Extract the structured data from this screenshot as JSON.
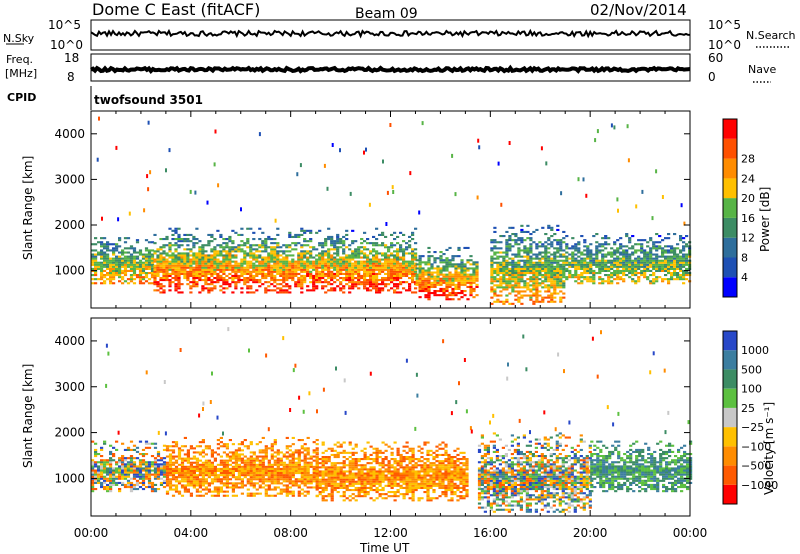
{
  "header": {
    "station": "Dome C East (fitACF)",
    "beam": "Beam 09",
    "date": "02/Nov/2014"
  },
  "strips": {
    "nsky": {
      "label": "N.Sky",
      "ticks": [
        "10^5",
        "10^0"
      ]
    },
    "nsearch": {
      "label": "N.Search",
      "ticks": [
        "10^5",
        "10^0"
      ]
    },
    "freq": {
      "label_top": "Freq.",
      "label_bottom": "[MHz]",
      "ticks": [
        "18",
        "8"
      ]
    },
    "nave": {
      "label": "Nave",
      "ticks": [
        "60",
        "0"
      ]
    },
    "cpid": {
      "label": "CPID",
      "value": "twofsound 3501"
    }
  },
  "colors": {
    "power": [
      "#0000ff",
      "#1e50b4",
      "#2e6e9c",
      "#3c8c64",
      "#57b446",
      "#ffc000",
      "#ff8c00",
      "#ff5000",
      "#ff0000"
    ],
    "velocity": [
      "#2848c8",
      "#3c7ea0",
      "#3c8c64",
      "#5cc040",
      "#c8c8c8",
      "#ffc000",
      "#ff8c00",
      "#ff5a00",
      "#ff0000"
    ]
  },
  "chart_data": [
    {
      "type": "heatmap",
      "title": "Power",
      "xlabel": "",
      "ylabel": "Slant Range [km]",
      "xlim": [
        0,
        24
      ],
      "ylim": [
        180,
        4500
      ],
      "yticks": [
        "1000",
        "2000",
        "3000",
        "4000"
      ],
      "colorbar": {
        "label": "Power [dB]",
        "ticks": [
          "4",
          "8",
          "12",
          "16",
          "20",
          "24",
          "28"
        ],
        "range": [
          0,
          30
        ]
      },
      "features": [
        {
          "t_start": 0.0,
          "t_end": 2.5,
          "r_start": 700,
          "r_end": 1700,
          "level": "medium"
        },
        {
          "t_start": 2.5,
          "t_end": 13.0,
          "r_start": 500,
          "r_end": 1900,
          "level": "high"
        },
        {
          "t_start": 13.0,
          "t_end": 15.5,
          "r_start": 350,
          "r_end": 1500,
          "level": "high"
        },
        {
          "t_start": 16.0,
          "t_end": 19.0,
          "r_start": 250,
          "r_end": 2000,
          "level": "medium"
        },
        {
          "t_start": 19.0,
          "t_end": 24.0,
          "r_start": 700,
          "r_end": 1800,
          "level": "low"
        }
      ]
    },
    {
      "type": "heatmap",
      "title": "Velocity",
      "xlabel": "Time UT",
      "ylabel": "Slant Range [km]",
      "xlim": [
        0,
        24
      ],
      "ylim": [
        180,
        4500
      ],
      "yticks": [
        "1000",
        "2000",
        "3000",
        "4000"
      ],
      "xticks": [
        "00:00",
        "04:00",
        "08:00",
        "12:00",
        "16:00",
        "20:00",
        "00:00"
      ],
      "colorbar": {
        "label": "Velocity [m s⁻¹]",
        "ticks": [
          "1000",
          "500",
          "100",
          "25",
          "−25",
          "−100",
          "−500",
          "−1000"
        ]
      },
      "features": [
        {
          "t_start": 0.0,
          "t_end": 3.0,
          "r_start": 700,
          "r_end": 1800,
          "level": "mixed"
        },
        {
          "t_start": 3.0,
          "t_end": 9.0,
          "r_start": 600,
          "r_end": 1900,
          "level": "negative"
        },
        {
          "t_start": 9.0,
          "t_end": 15.0,
          "r_start": 500,
          "r_end": 1800,
          "level": "negative"
        },
        {
          "t_start": 15.5,
          "t_end": 20.0,
          "r_start": 250,
          "r_end": 2000,
          "level": "mixed"
        },
        {
          "t_start": 20.0,
          "t_end": 24.0,
          "r_start": 700,
          "r_end": 1800,
          "level": "positive"
        }
      ]
    }
  ]
}
